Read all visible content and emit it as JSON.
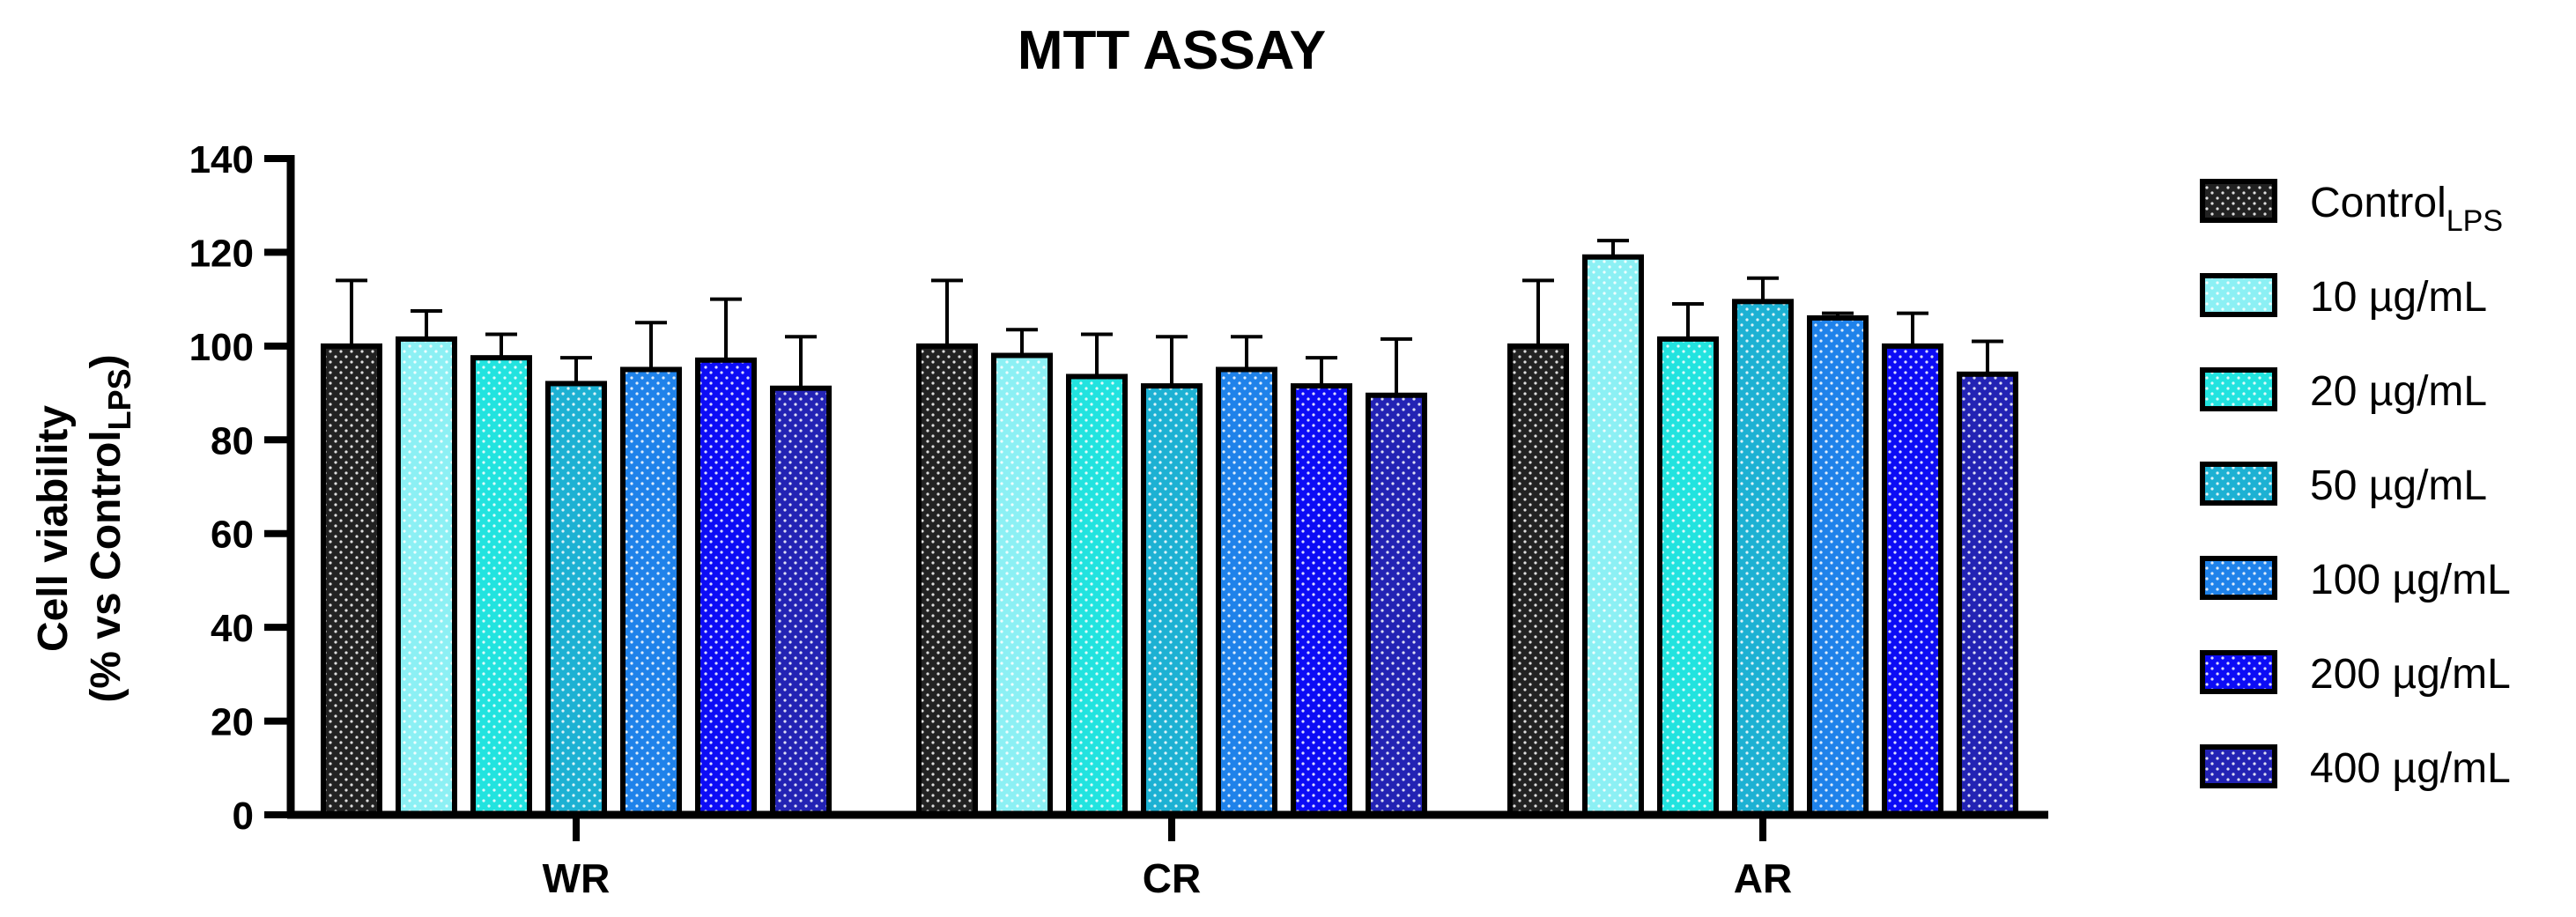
{
  "chart_data": {
    "type": "bar",
    "title": "MTT ASSAY",
    "ylabel_line1": "Cell viability",
    "ylabel_line2_prefix": "(% vs Control",
    "ylabel_line2_sub": "LPS",
    "ylabel_line2_suffix": ")",
    "xlabel": "",
    "ylim": [
      0,
      140
    ],
    "yticks": [
      0,
      20,
      40,
      60,
      80,
      100,
      120,
      140
    ],
    "categories": [
      "WR",
      "CR",
      "AR"
    ],
    "series": [
      {
        "name": "Control",
        "name_sub": "LPS",
        "color": "#222222",
        "values": [
          100,
          100,
          100
        ],
        "errors": [
          14,
          14,
          14
        ]
      },
      {
        "name": "10 µg/mL",
        "color": "#8cf0f4",
        "values": [
          101.5,
          98,
          119
        ],
        "errors": [
          6,
          5.5,
          3.5
        ]
      },
      {
        "name": "20 µg/mL",
        "color": "#22e3df",
        "values": [
          97.5,
          93.5,
          101.5
        ],
        "errors": [
          5,
          9,
          7.5
        ]
      },
      {
        "name": "50 µg/mL",
        "color": "#1db1d3",
        "values": [
          92,
          91.5,
          109.5
        ],
        "errors": [
          5.5,
          10.5,
          5
        ]
      },
      {
        "name": "100 µg/mL",
        "color": "#1f82ea",
        "values": [
          95,
          95,
          106
        ],
        "errors": [
          10,
          7,
          1
        ]
      },
      {
        "name": "200 µg/mL",
        "color": "#0c0cf5",
        "values": [
          97,
          91.5,
          100
        ],
        "errors": [
          13,
          6,
          7
        ]
      },
      {
        "name": "400 µg/mL",
        "color": "#2323b4",
        "values": [
          91,
          89.5,
          94
        ],
        "errors": [
          11,
          12,
          7
        ]
      }
    ]
  }
}
